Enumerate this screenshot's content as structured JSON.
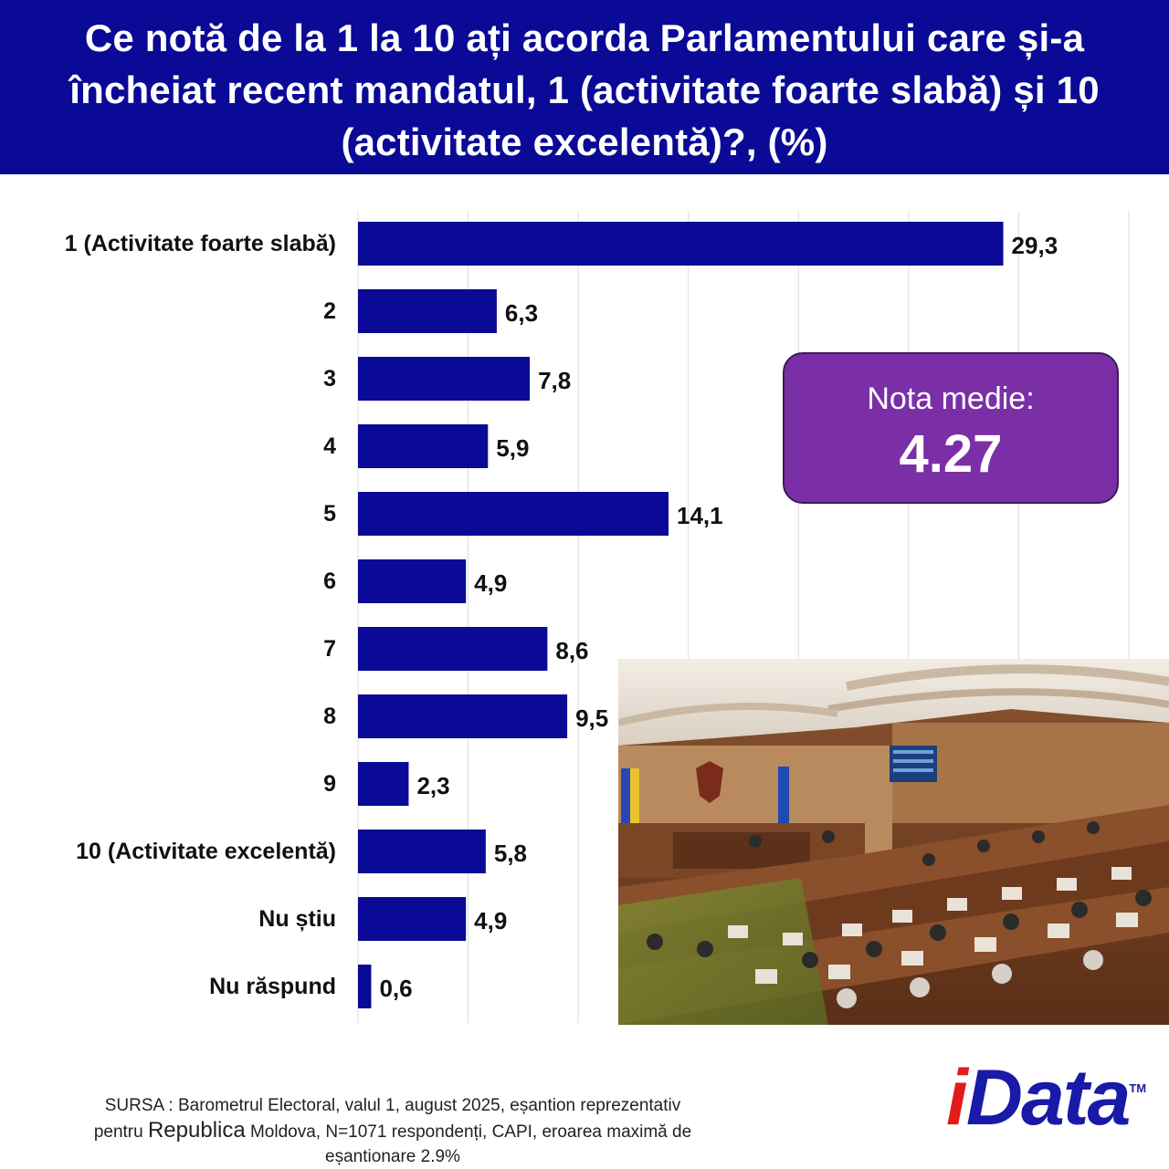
{
  "title": "Ce notă de la 1 la 10 ați acorda Parlamentului care și-a încheiat recent mandatul, 1 (activitate foarte slabă) și 10 (activitate excelentă)?, (%)",
  "chart_data": {
    "type": "bar",
    "orientation": "horizontal",
    "categories": [
      "1 (Activitate foarte slabă)",
      "2",
      "3",
      "4",
      "5",
      "6",
      "7",
      "8",
      "9",
      "10 (Activitate excelentă)",
      "Nu știu",
      "Nu răspund"
    ],
    "values": [
      29.3,
      6.3,
      7.8,
      5.9,
      14.1,
      4.9,
      8.6,
      9.5,
      2.3,
      5.8,
      4.9,
      0.6
    ],
    "value_labels": [
      "29,3",
      "6,3",
      "7,8",
      "5,9",
      "14,1",
      "4,9",
      "8,6",
      "9,5",
      "2,3",
      "5,8",
      "4,9",
      "0,6"
    ],
    "xlim": [
      0,
      35
    ],
    "grid": true,
    "bar_color": "#0a0a96"
  },
  "average": {
    "label": "Nota medie:",
    "value": "4.27",
    "box_color": "#7b2fa6"
  },
  "photo": {
    "icon": "parliament-hall-photo"
  },
  "source": {
    "line1": "SURSA : Barometrul Electoral, valul 1, august 2025, eșantion reprezentativ",
    "line2_prefix": "pentru ",
    "line2_emph": "Republica",
    "line2_rest": " Moldova, N=1071 respondenți, CAPI, eroarea maximă de",
    "line3": "eșantionare 2.9%"
  },
  "logo": {
    "i": "i",
    "rest": "Data",
    "tm": "TM"
  }
}
